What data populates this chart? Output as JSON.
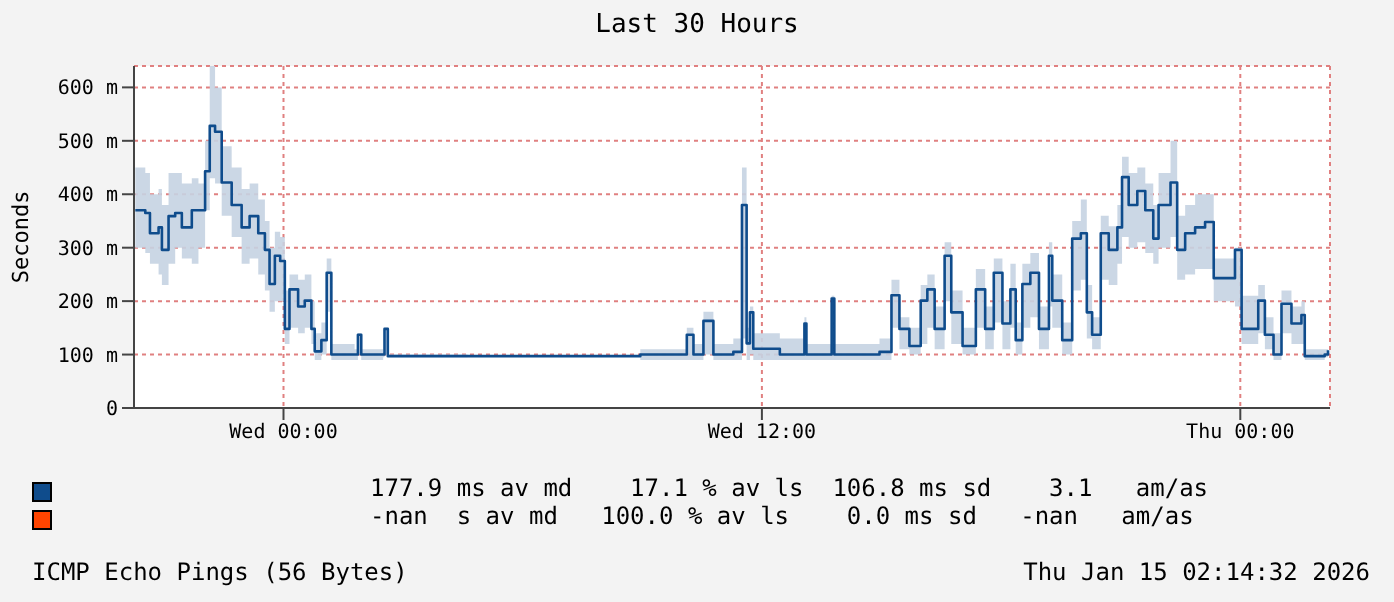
{
  "chart_data": {
    "type": "step",
    "title": "Last 30 Hours",
    "ylabel": "Seconds",
    "x": [
      "2026-01-13T20:17",
      "2026-01-13T20:32",
      "2026-01-13T20:39",
      "2026-01-13T20:52",
      "2026-01-13T20:57",
      "2026-01-13T21:07",
      "2026-01-13T21:17",
      "2026-01-13T21:27",
      "2026-01-13T21:42",
      "2026-01-13T21:52",
      "2026-01-13T22:02",
      "2026-01-13T22:09",
      "2026-01-13T22:17",
      "2026-01-13T22:27",
      "2026-01-13T22:42",
      "2026-01-13T22:57",
      "2026-01-13T23:09",
      "2026-01-13T23:22",
      "2026-01-13T23:32",
      "2026-01-13T23:39",
      "2026-01-13T23:47",
      "2026-01-13T23:55",
      "2026-01-14T00:02",
      "2026-01-14T00:09",
      "2026-01-14T00:22",
      "2026-01-14T00:32",
      "2026-01-14T00:42",
      "2026-01-14T00:47",
      "2026-01-14T00:57",
      "2026-01-14T01:05",
      "2026-01-14T01:12",
      "2026-01-14T01:47",
      "2026-01-14T01:52",
      "2026-01-14T01:57",
      "2026-01-14T02:30",
      "2026-01-14T02:32",
      "2026-01-14T02:37",
      "2026-01-14T04:37",
      "2026-01-14T07:27",
      "2026-01-14T08:57",
      "2026-01-14T10:07",
      "2026-01-14T10:17",
      "2026-01-14T10:32",
      "2026-01-14T10:47",
      "2026-01-14T11:17",
      "2026-01-14T11:30",
      "2026-01-14T11:37",
      "2026-01-14T11:42",
      "2026-01-14T11:47",
      "2026-01-14T12:27",
      "2026-01-14T13:04",
      "2026-01-14T13:07",
      "2026-01-14T13:45",
      "2026-01-14T13:49",
      "2026-01-14T14:57",
      "2026-01-14T15:15",
      "2026-01-14T15:27",
      "2026-01-14T15:42",
      "2026-01-14T15:59",
      "2026-01-14T16:09",
      "2026-01-14T16:20",
      "2026-01-14T16:35",
      "2026-01-14T16:45",
      "2026-01-14T17:02",
      "2026-01-14T17:22",
      "2026-01-14T17:36",
      "2026-01-14T17:49",
      "2026-01-14T18:02",
      "2026-01-14T18:14",
      "2026-01-14T18:22",
      "2026-01-14T18:32",
      "2026-01-14T18:44",
      "2026-01-14T18:57",
      "2026-01-14T19:12",
      "2026-01-14T19:17",
      "2026-01-14T19:32",
      "2026-01-14T19:47",
      "2026-01-14T20:00",
      "2026-01-14T20:09",
      "2026-01-14T20:17",
      "2026-01-14T20:30",
      "2026-01-14T20:42",
      "2026-01-14T20:55",
      "2026-01-14T21:02",
      "2026-01-14T21:12",
      "2026-01-14T21:25",
      "2026-01-14T21:37",
      "2026-01-14T21:49",
      "2026-01-14T21:57",
      "2026-01-14T22:15",
      "2026-01-14T22:25",
      "2026-01-14T22:37",
      "2026-01-14T22:52",
      "2026-01-14T23:07",
      "2026-01-14T23:20",
      "2026-01-14T23:52",
      "2026-01-15T00:02",
      "2026-01-15T00:27",
      "2026-01-15T00:37",
      "2026-01-15T00:50",
      "2026-01-15T01:02",
      "2026-01-15T01:17",
      "2026-01-15T01:32",
      "2026-01-15T01:37",
      "2026-01-15T02:07",
      "2026-01-15T02:12"
    ],
    "series": [
      {
        "color": "#0f4c8c",
        "values": [
          370,
          365,
          327,
          338,
          296,
          359,
          365,
          338,
          370,
          370,
          443,
          528,
          517,
          422,
          380,
          338,
          359,
          327,
          296,
          232,
          285,
          275,
          148,
          222,
          190,
          201,
          148,
          106,
          127,
          253,
          100,
          100,
          137,
          100,
          100,
          148,
          97,
          97,
          97,
          100,
          137,
          100,
          163,
          100,
          105,
          380,
          121,
          179,
          111,
          100,
          158,
          100,
          205,
          100,
          105,
          211,
          148,
          116,
          201,
          222,
          148,
          285,
          179,
          116,
          222,
          148,
          253,
          158,
          222,
          127,
          232,
          253,
          148,
          285,
          201,
          127,
          317,
          327,
          179,
          137,
          327,
          296,
          338,
          432,
          380,
          406,
          370,
          317,
          380,
          422,
          296,
          327,
          338,
          348,
          243,
          296,
          148,
          201,
          137,
          100,
          195,
          158,
          174,
          97,
          100,
          108
        ],
        "lower": [
          300,
          290,
          270,
          250,
          230,
          270,
          300,
          280,
          270,
          300,
          370,
          430,
          420,
          360,
          320,
          270,
          280,
          250,
          220,
          180,
          200,
          200,
          120,
          150,
          140,
          150,
          120,
          90,
          100,
          180,
          90,
          90,
          100,
          90,
          95,
          100,
          95,
          97,
          97,
          90,
          90,
          90,
          100,
          90,
          90,
          130,
          90,
          100,
          90,
          90,
          90,
          90,
          90,
          90,
          90,
          150,
          110,
          100,
          120,
          150,
          110,
          200,
          120,
          100,
          150,
          110,
          160,
          110,
          150,
          100,
          150,
          170,
          110,
          190,
          150,
          100,
          220,
          240,
          130,
          110,
          240,
          230,
          270,
          320,
          300,
          310,
          290,
          270,
          300,
          320,
          240,
          250,
          260,
          260,
          200,
          190,
          120,
          140,
          110,
          90,
          140,
          120,
          120,
          90,
          95,
          100
        ],
        "upper": [
          450,
          440,
          400,
          410,
          380,
          440,
          440,
          420,
          430,
          420,
          500,
          640,
          600,
          490,
          450,
          410,
          420,
          390,
          350,
          300,
          330,
          320,
          220,
          250,
          240,
          250,
          200,
          140,
          160,
          280,
          120,
          110,
          140,
          110,
          105,
          150,
          100,
          97,
          97,
          110,
          150,
          120,
          180,
          120,
          130,
          450,
          150,
          190,
          140,
          130,
          170,
          120,
          210,
          120,
          130,
          240,
          170,
          150,
          230,
          250,
          190,
          310,
          220,
          150,
          260,
          190,
          280,
          200,
          270,
          160,
          270,
          290,
          190,
          310,
          250,
          160,
          350,
          390,
          230,
          170,
          360,
          340,
          380,
          470,
          440,
          450,
          420,
          380,
          440,
          500,
          360,
          380,
          400,
          400,
          280,
          300,
          210,
          230,
          170,
          140,
          220,
          190,
          200,
          110,
          110,
          120
        ]
      }
    ],
    "xlim": [
      "2026-01-13T20:15",
      "2026-01-15T02:15"
    ],
    "xticks": [
      {
        "value": "2026-01-14T00:00",
        "label": "Wed 00:00"
      },
      {
        "value": "2026-01-14T12:00",
        "label": "Wed 12:00"
      },
      {
        "value": "2026-01-15T00:00",
        "label": "Thu 00:00"
      }
    ],
    "ylim": [
      0,
      640
    ],
    "yticks": [
      0,
      {
        "value": 100,
        "label": "100 m"
      },
      {
        "value": 200,
        "label": "200 m"
      },
      {
        "value": 300,
        "label": "300 m"
      },
      {
        "value": 400,
        "label": "400 m"
      },
      {
        "value": 500,
        "label": "500 m"
      },
      {
        "value": 600,
        "label": "600 m"
      }
    ],
    "grid": true,
    "marker": "none",
    "line_style": "solid",
    "annotations": [
      "177.9 ms av md    17.1 % av ls  106.8 ms sd    3.1   am/as",
      "-nan  s av md   100.0 % av ls    0.0 ms sd   -nan   am/as",
      "ICMP Echo Pings (56 Bytes)",
      "Thu Jan 15 02:14:32 2026"
    ]
  }
}
